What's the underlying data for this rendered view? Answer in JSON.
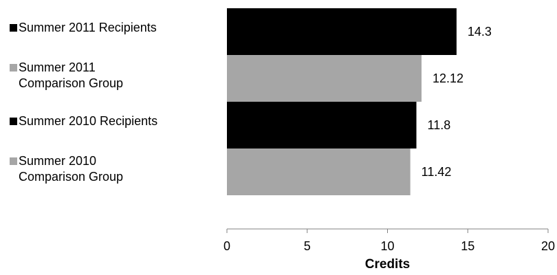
{
  "chart_data": {
    "type": "bar",
    "orientation": "horizontal",
    "title": "",
    "xlabel": "Credits",
    "ylabel": "",
    "xlim": [
      0,
      20
    ],
    "xticks": [
      0,
      5,
      10,
      15,
      20
    ],
    "grid": false,
    "legend_position": "left",
    "categories": [
      [
        "Summer 2011 Recipients"
      ],
      [
        "Summer 2011",
        "Comparison Group"
      ],
      [
        "Summer 2010 Recipients"
      ],
      [
        "Summer 2010",
        "Comparison Group"
      ]
    ],
    "values": [
      14.3,
      12.12,
      11.8,
      11.42
    ],
    "value_labels": [
      "14.3",
      "12.12",
      "11.8",
      "11.42"
    ],
    "colors": [
      "#000000",
      "#a6a6a6",
      "#000000",
      "#a6a6a6"
    ]
  }
}
